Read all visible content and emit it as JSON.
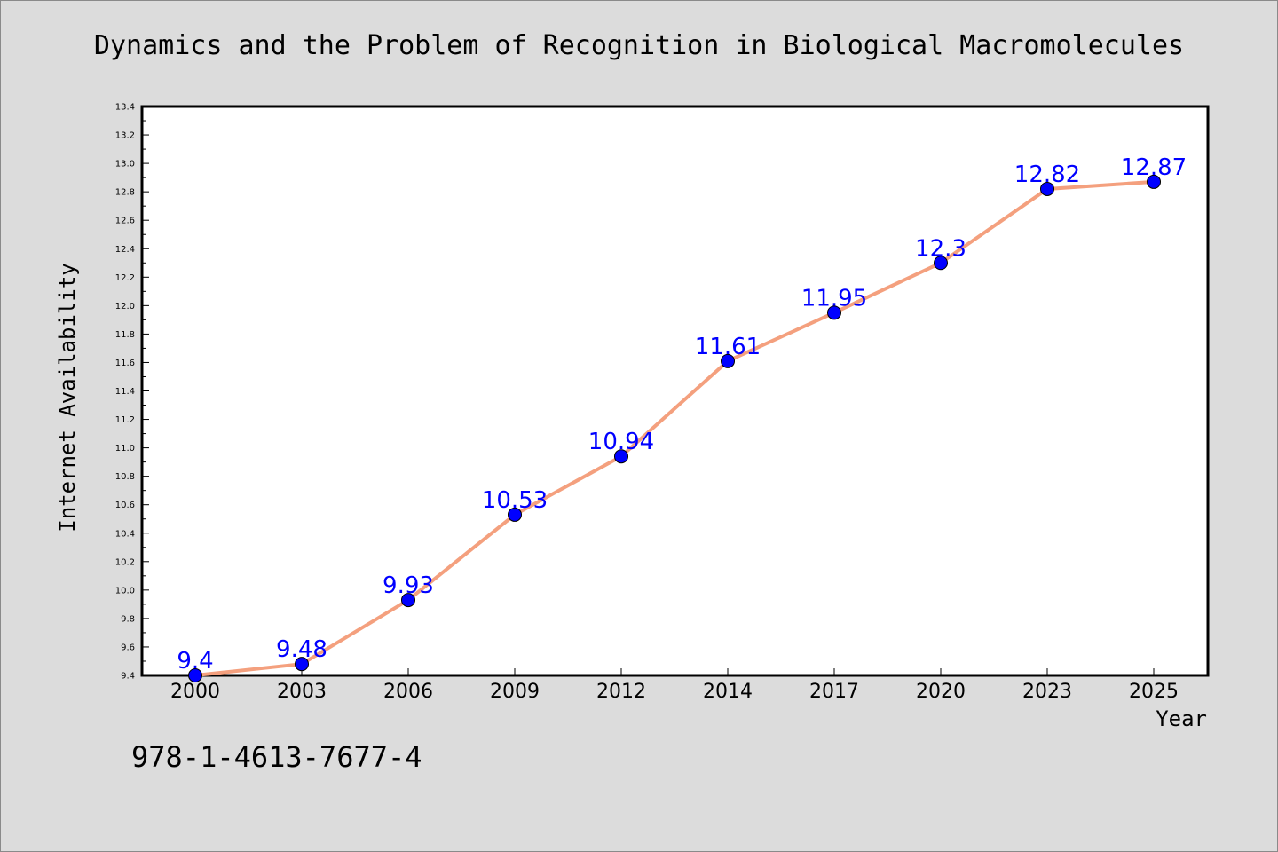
{
  "chart_data": {
    "type": "line",
    "title": "Dynamics and the Problem of Recognition in Biological Macromolecules",
    "xlabel": "Year",
    "ylabel": "Internet Availability",
    "categories": [
      "2000",
      "2003",
      "2006",
      "2009",
      "2012",
      "2014",
      "2017",
      "2020",
      "2023",
      "2025"
    ],
    "series": [
      {
        "values": [
          9.4,
          9.48,
          9.93,
          10.53,
          10.94,
          11.61,
          11.95,
          12.3,
          12.82,
          12.87
        ],
        "data_labels": [
          "9.4",
          "9.48",
          "9.93",
          "10.53",
          "10.94",
          "11.61",
          "11.95",
          "12.3",
          "12.82",
          "12.87"
        ],
        "line_color": "#f4a07e",
        "marker_color": "#0000ff"
      }
    ],
    "ylim": [
      9.4,
      13.4
    ],
    "yticks": [
      "9.4",
      "9.6",
      "9.8",
      "10.0",
      "10.2",
      "10.4",
      "10.6",
      "10.8",
      "11.0",
      "11.2",
      "11.4",
      "11.6",
      "11.8",
      "12.0",
      "12.2",
      "12.4",
      "12.6",
      "12.8",
      "13.0",
      "13.2",
      "13.4"
    ],
    "grid": false,
    "legend": "none"
  },
  "footer_text": "978-1-4613-7677-4",
  "colors": {
    "background": "#dcdcdc",
    "plot_background": "#ffffff",
    "label_color": "#0000ff"
  }
}
